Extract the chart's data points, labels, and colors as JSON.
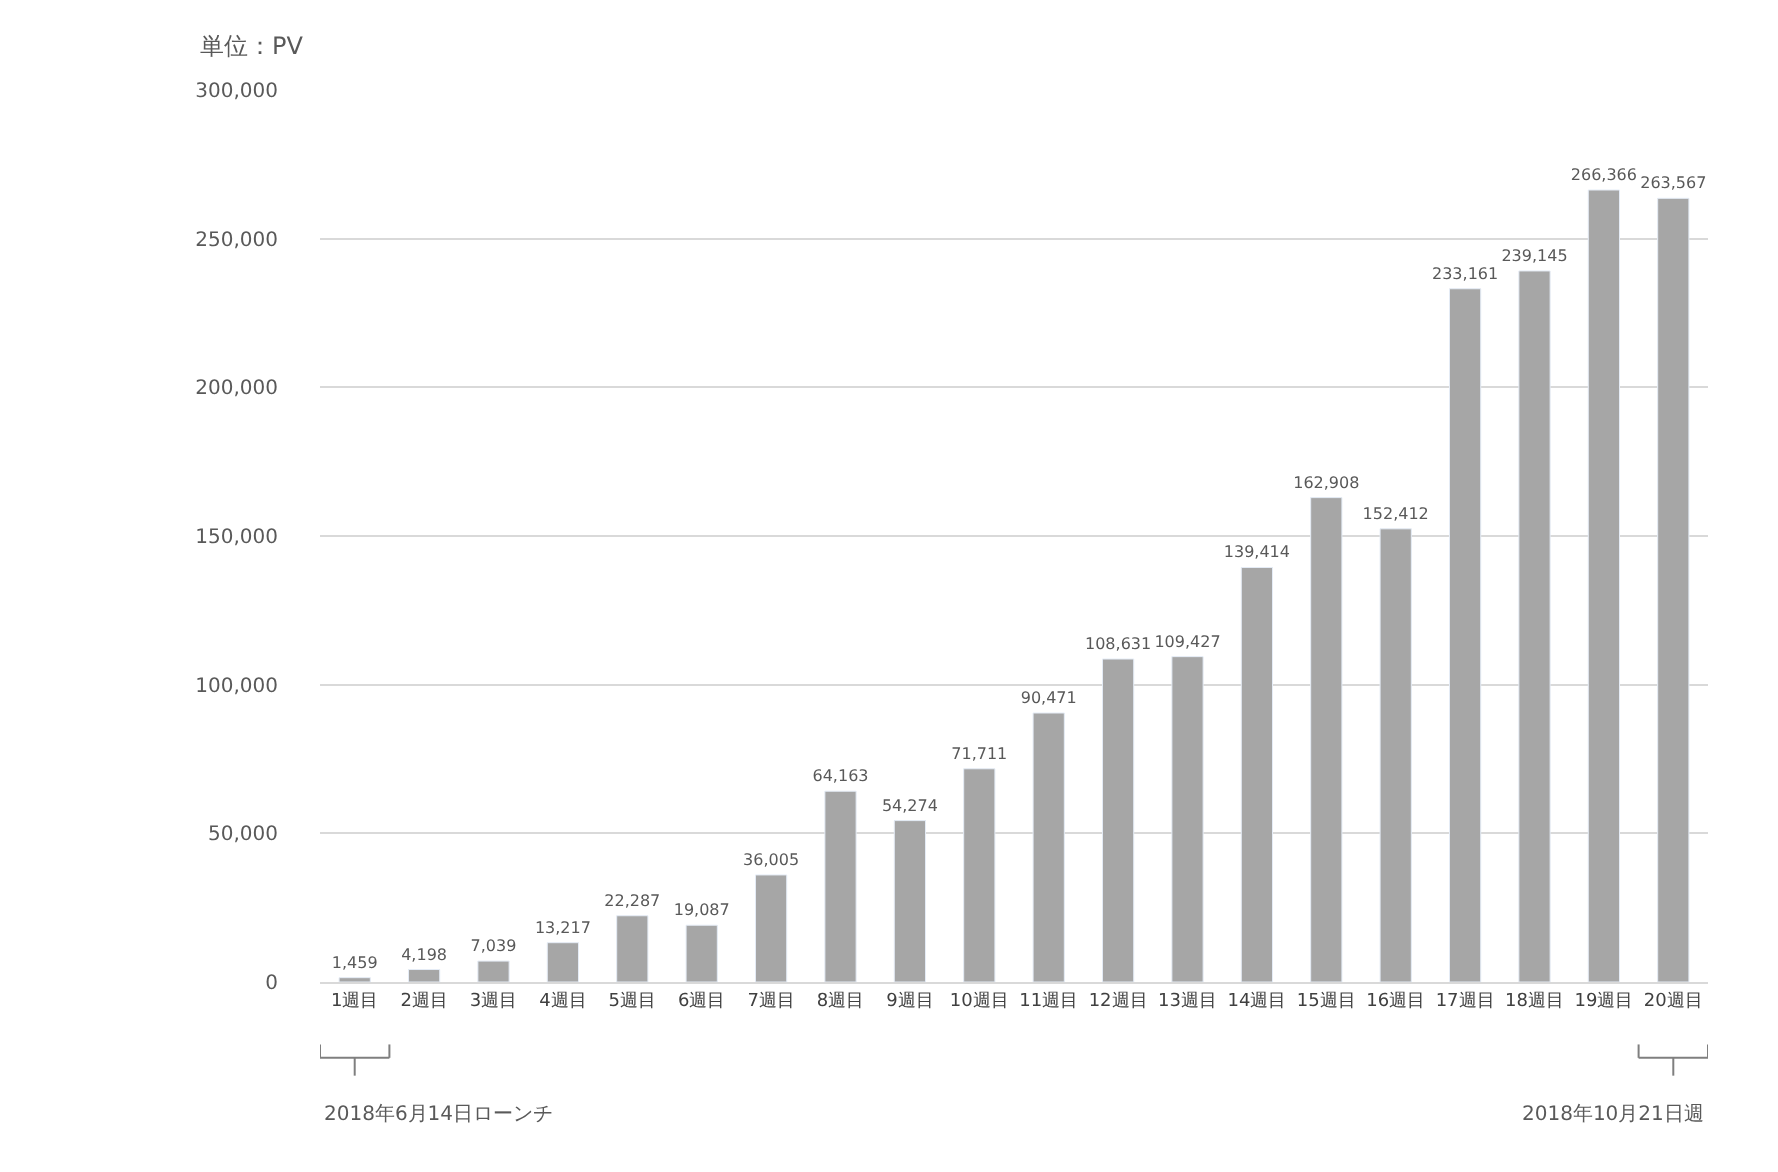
{
  "chart_data": {
    "type": "bar",
    "ylabel": "単位：PV",
    "categories": [
      "1週目",
      "2週目",
      "3週目",
      "4週目",
      "5週目",
      "6週目",
      "7週目",
      "8週目",
      "9週目",
      "10週目",
      "11週目",
      "12週目",
      "13週目",
      "14週目",
      "15週目",
      "16週目",
      "17週目",
      "18週目",
      "19週目",
      "20週目"
    ],
    "values": [
      1459,
      4198,
      7039,
      13217,
      22287,
      19087,
      36005,
      64163,
      54274,
      71711,
      90471,
      108631,
      109427,
      139414,
      162908,
      152412,
      233161,
      239145,
      266366,
      263567
    ],
    "color": "#a6a6a6",
    "ylim": [
      0,
      300000
    ],
    "yticks": [
      {
        "value": 0,
        "label": "0"
      },
      {
        "value": 50000,
        "label": "50,000"
      },
      {
        "value": 100000,
        "label": "100,000"
      },
      {
        "value": 150000,
        "label": "150,000"
      },
      {
        "value": 200000,
        "label": "200,000"
      },
      {
        "value": 250000,
        "label": "250,000"
      },
      {
        "value": 300000,
        "label": "300,000"
      }
    ],
    "value_labels": [
      "1,459",
      "4,198",
      "7,039",
      "13,217",
      "22,287",
      "19,087",
      "36,005",
      "64,163",
      "54,274",
      "71,711",
      "90,471",
      "108,631",
      "109,427",
      "139,414",
      "162,908",
      "152,412",
      "233,161",
      "239,145",
      "266,366",
      "263,567"
    ],
    "grid": "y",
    "legend": false,
    "annotations": [
      "2018年6月14日ローンチ",
      "2018年10月21日週"
    ]
  }
}
